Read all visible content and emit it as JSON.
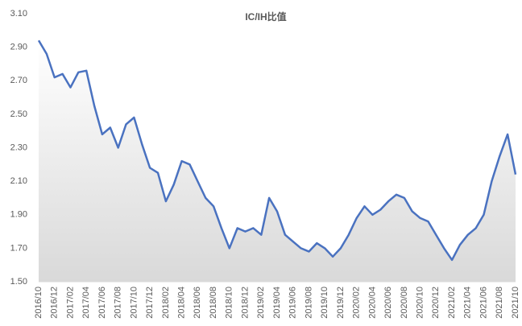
{
  "chart_data": {
    "type": "area-line",
    "title": "IC/IH比值",
    "categories": [
      "2016/10",
      null,
      "2016/12",
      null,
      "2017/02",
      null,
      "2017/04",
      null,
      "2017/06",
      null,
      "2017/08",
      null,
      "2017/10",
      null,
      "2017/12",
      null,
      "2018/02",
      null,
      "2018/04",
      null,
      "2018/06",
      null,
      "2018/08",
      null,
      "2018/10",
      null,
      "2018/12",
      null,
      "2019/02",
      null,
      "2019/04",
      null,
      "2019/06",
      null,
      "2019/08",
      null,
      "2019/10",
      null,
      "2019/12",
      null,
      "2020/02",
      null,
      "2020/04",
      null,
      "2020/06",
      null,
      "2020/08",
      null,
      "2020/10",
      null,
      "2020/12",
      null,
      "2021/02",
      null,
      "2021/04",
      null,
      "2021/06",
      null,
      "2021/08",
      null,
      "2021/10"
    ],
    "values": [
      2.94,
      2.86,
      2.72,
      2.74,
      2.66,
      2.75,
      2.76,
      2.55,
      2.38,
      2.42,
      2.3,
      2.44,
      2.48,
      2.32,
      2.18,
      2.15,
      1.98,
      2.08,
      2.22,
      2.2,
      2.1,
      2.0,
      1.95,
      1.82,
      1.7,
      1.82,
      1.8,
      1.82,
      1.78,
      2.0,
      1.92,
      1.78,
      1.74,
      1.7,
      1.68,
      1.73,
      1.7,
      1.65,
      1.7,
      1.78,
      1.88,
      1.95,
      1.9,
      1.93,
      1.98,
      2.02,
      2.0,
      1.92,
      1.88,
      1.86,
      1.78,
      1.7,
      1.63,
      1.72,
      1.78,
      1.82,
      1.9,
      2.1,
      2.25,
      2.38,
      2.14
    ],
    "color": "#4a72c0",
    "fill_color": "#d9d9d9",
    "ylim": [
      1.5,
      3.1
    ],
    "yticks": [
      {
        "value": 1.5,
        "label": "1.50"
      },
      {
        "value": 1.7,
        "label": "1.70"
      },
      {
        "value": 1.9,
        "label": "1.90"
      },
      {
        "value": 2.1,
        "label": "2.10"
      },
      {
        "value": 2.3,
        "label": "2.30"
      },
      {
        "value": 2.5,
        "label": "2.50"
      },
      {
        "value": 2.7,
        "label": "2.70"
      },
      {
        "value": 2.9,
        "label": "2.90"
      },
      {
        "value": 3.1,
        "label": "3.10"
      }
    ],
    "grid": false
  }
}
